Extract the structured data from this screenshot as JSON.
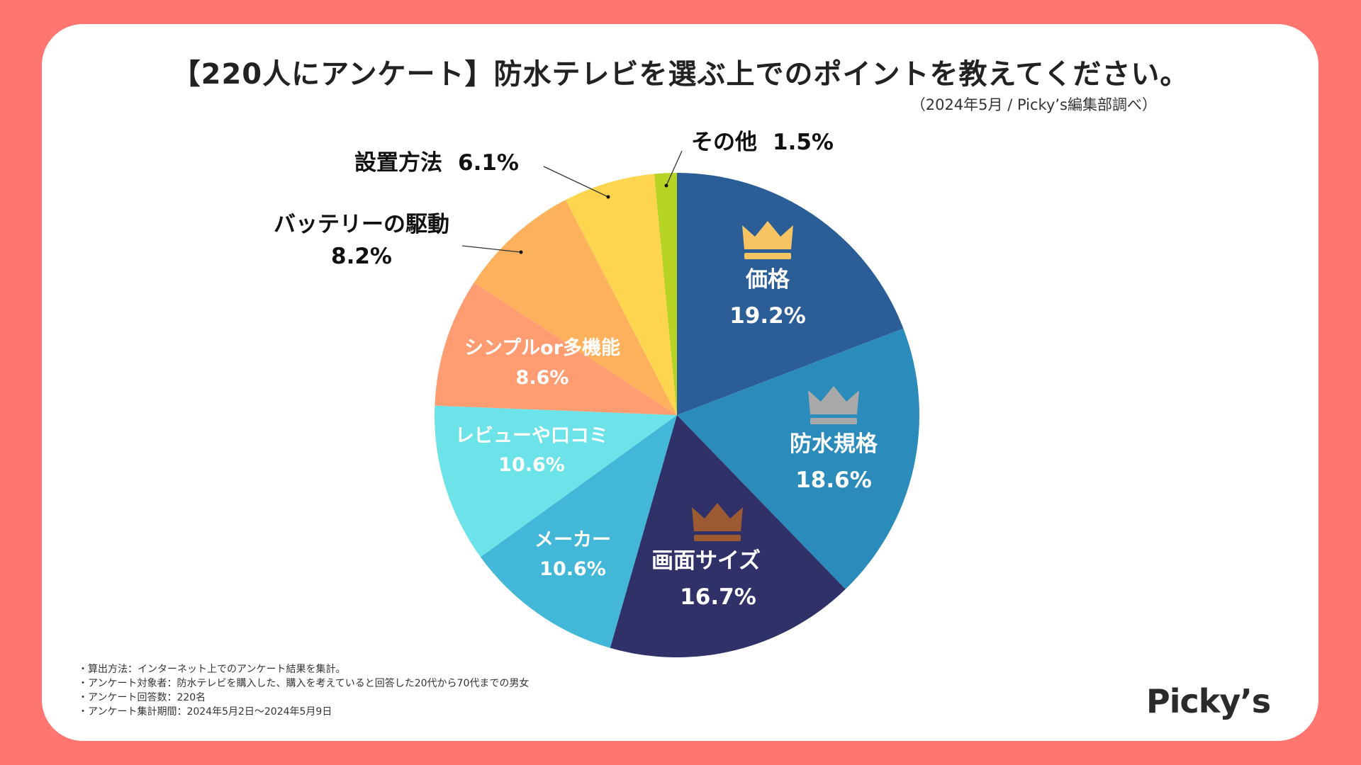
{
  "title": "【220人にアンケート】防水テレビを選ぶ上でのポイントを教えてください。",
  "subtitle": "（2024年5月 / Picky’s編集部調べ）",
  "logo": "Picky’s",
  "notes": [
    "・算出方法：インターネット上でのアンケート結果を集計。",
    "・アンケート対象者：防水テレビを購入した、購入を考えていると回答した20代から70代までの男女",
    "・アンケート回答数：220名",
    "・アンケート集計期間：2024年5月2日〜2024年5月9日"
  ],
  "chart_data": {
    "type": "pie",
    "title": "防水テレビを選ぶ上でのポイント",
    "start": "12 o'clock",
    "direction": "clockwise",
    "slices": [
      {
        "label": "価格",
        "value": 19.2,
        "value_label": "19.2%",
        "color": "#2b5d97",
        "text_color": "#ffffff",
        "label_position": "inside",
        "crown": "gold",
        "crown_color": "#f6c462"
      },
      {
        "label": "防水規格",
        "value": 18.6,
        "value_label": "18.6%",
        "color": "#2b8bbb",
        "text_color": "#ffffff",
        "label_position": "inside",
        "crown": "silver",
        "crown_color": "#a9a9a9"
      },
      {
        "label": "画面サイズ",
        "value": 16.7,
        "value_label": "16.7%",
        "color": "#2f3168",
        "text_color": "#ffffff",
        "label_position": "inside",
        "crown": "bronze",
        "crown_color": "#9c5a33"
      },
      {
        "label": "メーカー",
        "value": 10.6,
        "value_label": "10.6%",
        "color": "#42b7d7",
        "text_color": "#ffffff",
        "label_position": "inside"
      },
      {
        "label": "レビューや口コミ",
        "value": 10.6,
        "value_label": "10.6%",
        "color": "#6be3e8",
        "text_color": "#ffffff",
        "label_position": "inside"
      },
      {
        "label": "シンプルor多機能",
        "value": 8.6,
        "value_label": "8.6%",
        "color": "#ff9c72",
        "text_color": "#ffffff",
        "label_position": "inside"
      },
      {
        "label": "バッテリーの駆動",
        "value": 8.2,
        "value_label": "8.2%",
        "color": "#feb15c",
        "text_color": "#111111",
        "label_position": "outside"
      },
      {
        "label": "設置方法",
        "value": 6.1,
        "value_label": "6.1%",
        "color": "#fed54e",
        "text_color": "#111111",
        "label_position": "outside"
      },
      {
        "label": "その他",
        "value": 1.5,
        "value_label": "1.5%",
        "color": "#b7d424",
        "text_color": "#111111",
        "label_position": "outside"
      }
    ]
  }
}
